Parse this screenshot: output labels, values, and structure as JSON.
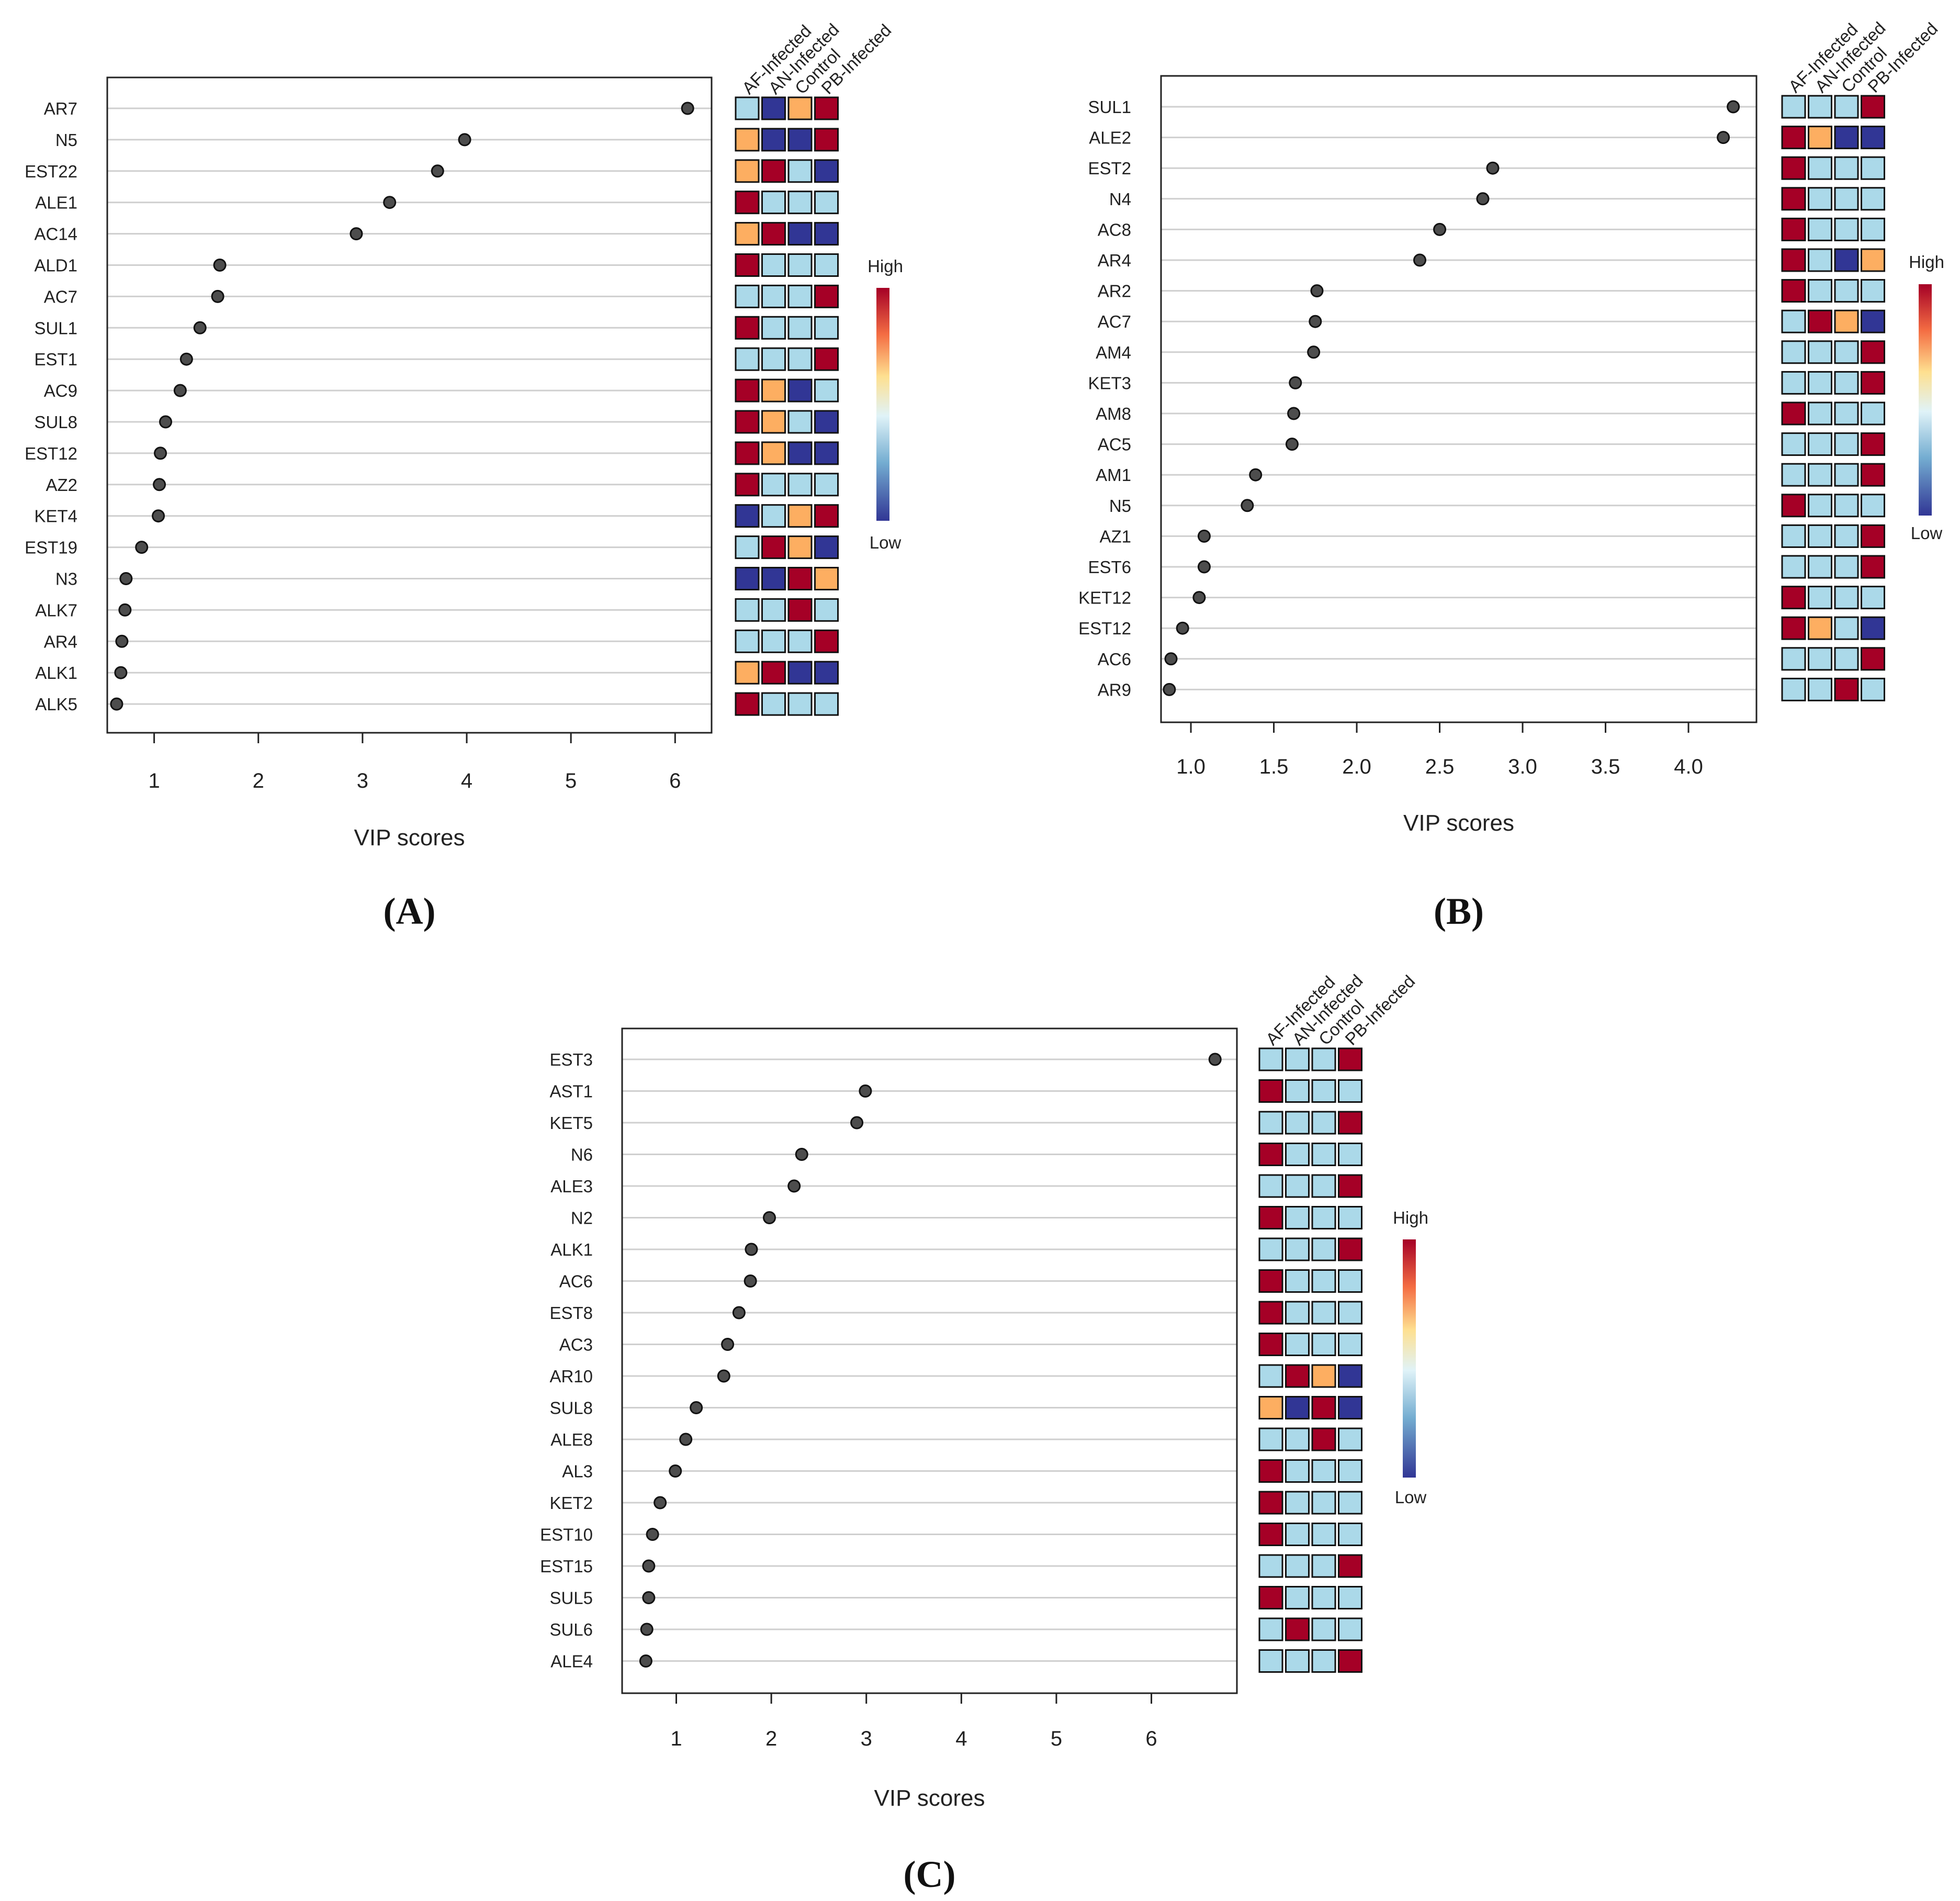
{
  "colors": {
    "high": "#a50026",
    "mid_high": "#fdae61",
    "mid_low": "#abd9e9",
    "low": "#313695",
    "dot": "#4d4d4d",
    "grid": "#cfcfcf"
  },
  "chart_data": [
    {
      "type": "scatter",
      "panel_label": "(A)",
      "xlabel": "VIP scores",
      "xlim": [
        0.55,
        6.35
      ],
      "xticks": [
        1,
        2,
        3,
        4,
        5,
        6
      ],
      "groups": [
        "AF-Infected",
        "AN-Infected",
        "Control",
        "PB-Infected"
      ],
      "legend": {
        "high": "High",
        "low": "Low"
      },
      "items": [
        {
          "label": "AR7",
          "vip": 6.12,
          "levels": [
            "mid_low",
            "low",
            "mid_high",
            "high"
          ]
        },
        {
          "label": "N5",
          "vip": 3.98,
          "levels": [
            "mid_high",
            "low",
            "low",
            "high"
          ]
        },
        {
          "label": "EST22",
          "vip": 3.72,
          "levels": [
            "mid_high",
            "high",
            "mid_low",
            "low"
          ]
        },
        {
          "label": "ALE1",
          "vip": 3.26,
          "levels": [
            "high",
            "mid_low",
            "mid_low",
            "mid_low"
          ]
        },
        {
          "label": "AC14",
          "vip": 2.94,
          "levels": [
            "mid_high",
            "high",
            "low",
            "low"
          ]
        },
        {
          "label": "ALD1",
          "vip": 1.63,
          "levels": [
            "high",
            "mid_low",
            "mid_low",
            "mid_low"
          ]
        },
        {
          "label": "AC7",
          "vip": 1.61,
          "levels": [
            "mid_low",
            "mid_low",
            "mid_low",
            "high"
          ]
        },
        {
          "label": "SUL1",
          "vip": 1.44,
          "levels": [
            "high",
            "mid_low",
            "mid_low",
            "mid_low"
          ]
        },
        {
          "label": "EST1",
          "vip": 1.31,
          "levels": [
            "mid_low",
            "mid_low",
            "mid_low",
            "high"
          ]
        },
        {
          "label": "AC9",
          "vip": 1.25,
          "levels": [
            "high",
            "mid_high",
            "low",
            "mid_low"
          ]
        },
        {
          "label": "SUL8",
          "vip": 1.11,
          "levels": [
            "high",
            "mid_high",
            "mid_low",
            "low"
          ]
        },
        {
          "label": "EST12",
          "vip": 1.06,
          "levels": [
            "high",
            "mid_high",
            "low",
            "low"
          ]
        },
        {
          "label": "AZ2",
          "vip": 1.05,
          "levels": [
            "high",
            "mid_low",
            "mid_low",
            "mid_low"
          ]
        },
        {
          "label": "KET4",
          "vip": 1.04,
          "levels": [
            "low",
            "mid_low",
            "mid_high",
            "high"
          ]
        },
        {
          "label": "EST19",
          "vip": 0.88,
          "levels": [
            "mid_low",
            "high",
            "mid_high",
            "low"
          ]
        },
        {
          "label": "N3",
          "vip": 0.73,
          "levels": [
            "low",
            "low",
            "high",
            "mid_high"
          ]
        },
        {
          "label": "ALK7",
          "vip": 0.72,
          "levels": [
            "mid_low",
            "mid_low",
            "high",
            "mid_low"
          ]
        },
        {
          "label": "AR4",
          "vip": 0.69,
          "levels": [
            "mid_low",
            "mid_low",
            "mid_low",
            "high"
          ]
        },
        {
          "label": "ALK1",
          "vip": 0.68,
          "levels": [
            "mid_high",
            "high",
            "low",
            "low"
          ]
        },
        {
          "label": "ALK5",
          "vip": 0.64,
          "levels": [
            "high",
            "mid_low",
            "mid_low",
            "mid_low"
          ]
        }
      ]
    },
    {
      "type": "scatter",
      "panel_label": "(B)",
      "xlabel": "VIP scores",
      "xlim": [
        0.82,
        4.41
      ],
      "xticks": [
        1.0,
        1.5,
        2.0,
        2.5,
        3.0,
        3.5,
        4.0
      ],
      "xtick_labels": [
        "1.0",
        "1.5",
        "2.0",
        "2.5",
        "3.0",
        "3.5",
        "4.0"
      ],
      "groups": [
        "AF-Infected",
        "AN-Infected",
        "Control",
        "PB-Infected"
      ],
      "legend": {
        "high": "High",
        "low": "Low"
      },
      "items": [
        {
          "label": "SUL1",
          "vip": 4.27,
          "levels": [
            "mid_low",
            "mid_low",
            "mid_low",
            "high"
          ]
        },
        {
          "label": "ALE2",
          "vip": 4.21,
          "levels": [
            "high",
            "mid_high",
            "low",
            "low"
          ]
        },
        {
          "label": "EST2",
          "vip": 2.82,
          "levels": [
            "high",
            "mid_low",
            "mid_low",
            "mid_low"
          ]
        },
        {
          "label": "N4",
          "vip": 2.76,
          "levels": [
            "high",
            "mid_low",
            "mid_low",
            "mid_low"
          ]
        },
        {
          "label": "AC8",
          "vip": 2.5,
          "levels": [
            "high",
            "mid_low",
            "mid_low",
            "mid_low"
          ]
        },
        {
          "label": "AR4",
          "vip": 2.38,
          "levels": [
            "high",
            "mid_low",
            "low",
            "mid_high"
          ]
        },
        {
          "label": "AR2",
          "vip": 1.76,
          "levels": [
            "high",
            "mid_low",
            "mid_low",
            "mid_low"
          ]
        },
        {
          "label": "AC7",
          "vip": 1.75,
          "levels": [
            "mid_low",
            "high",
            "mid_high",
            "low"
          ]
        },
        {
          "label": "AM4",
          "vip": 1.74,
          "levels": [
            "mid_low",
            "mid_low",
            "mid_low",
            "high"
          ]
        },
        {
          "label": "KET3",
          "vip": 1.63,
          "levels": [
            "mid_low",
            "mid_low",
            "mid_low",
            "high"
          ]
        },
        {
          "label": "AM8",
          "vip": 1.62,
          "levels": [
            "high",
            "mid_low",
            "mid_low",
            "mid_low"
          ]
        },
        {
          "label": "AC5",
          "vip": 1.61,
          "levels": [
            "mid_low",
            "mid_low",
            "mid_low",
            "high"
          ]
        },
        {
          "label": "AM1",
          "vip": 1.39,
          "levels": [
            "mid_low",
            "mid_low",
            "mid_low",
            "high"
          ]
        },
        {
          "label": "N5",
          "vip": 1.34,
          "levels": [
            "high",
            "mid_low",
            "mid_low",
            "mid_low"
          ]
        },
        {
          "label": "AZ1",
          "vip": 1.08,
          "levels": [
            "mid_low",
            "mid_low",
            "mid_low",
            "high"
          ]
        },
        {
          "label": "EST6",
          "vip": 1.08,
          "levels": [
            "mid_low",
            "mid_low",
            "mid_low",
            "high"
          ]
        },
        {
          "label": "KET12",
          "vip": 1.05,
          "levels": [
            "high",
            "mid_low",
            "mid_low",
            "mid_low"
          ]
        },
        {
          "label": "EST12",
          "vip": 0.95,
          "levels": [
            "high",
            "mid_high",
            "mid_low",
            "low"
          ]
        },
        {
          "label": "AC6",
          "vip": 0.88,
          "levels": [
            "mid_low",
            "mid_low",
            "mid_low",
            "high"
          ]
        },
        {
          "label": "AR9",
          "vip": 0.87,
          "levels": [
            "mid_low",
            "mid_low",
            "high",
            "mid_low"
          ]
        }
      ]
    },
    {
      "type": "scatter",
      "panel_label": "(C)",
      "xlabel": "VIP scores",
      "xlim": [
        0.43,
        6.9
      ],
      "xticks": [
        1,
        2,
        3,
        4,
        5,
        6
      ],
      "groups": [
        "AF-Infected",
        "AN-Infected",
        "Control",
        "PB-Infected"
      ],
      "legend": {
        "high": "High",
        "low": "Low"
      },
      "items": [
        {
          "label": "EST3",
          "vip": 6.67,
          "levels": [
            "mid_low",
            "mid_low",
            "mid_low",
            "high"
          ]
        },
        {
          "label": "AST1",
          "vip": 2.99,
          "levels": [
            "high",
            "mid_low",
            "mid_low",
            "mid_low"
          ]
        },
        {
          "label": "KET5",
          "vip": 2.9,
          "levels": [
            "mid_low",
            "mid_low",
            "mid_low",
            "high"
          ]
        },
        {
          "label": "N6",
          "vip": 2.32,
          "levels": [
            "high",
            "mid_low",
            "mid_low",
            "mid_low"
          ]
        },
        {
          "label": "ALE3",
          "vip": 2.24,
          "levels": [
            "mid_low",
            "mid_low",
            "mid_low",
            "high"
          ]
        },
        {
          "label": "N2",
          "vip": 1.98,
          "levels": [
            "high",
            "mid_low",
            "mid_low",
            "mid_low"
          ]
        },
        {
          "label": "ALK1",
          "vip": 1.79,
          "levels": [
            "mid_low",
            "mid_low",
            "mid_low",
            "high"
          ]
        },
        {
          "label": "AC6",
          "vip": 1.78,
          "levels": [
            "high",
            "mid_low",
            "mid_low",
            "mid_low"
          ]
        },
        {
          "label": "EST8",
          "vip": 1.66,
          "levels": [
            "high",
            "mid_low",
            "mid_low",
            "mid_low"
          ]
        },
        {
          "label": "AC3",
          "vip": 1.54,
          "levels": [
            "high",
            "mid_low",
            "mid_low",
            "mid_low"
          ]
        },
        {
          "label": "AR10",
          "vip": 1.5,
          "levels": [
            "mid_low",
            "high",
            "mid_high",
            "low"
          ]
        },
        {
          "label": "SUL8",
          "vip": 1.21,
          "levels": [
            "mid_high",
            "low",
            "high",
            "low"
          ]
        },
        {
          "label": "ALE8",
          "vip": 1.1,
          "levels": [
            "mid_low",
            "mid_low",
            "high",
            "mid_low"
          ]
        },
        {
          "label": "AL3",
          "vip": 0.99,
          "levels": [
            "high",
            "mid_low",
            "mid_low",
            "mid_low"
          ]
        },
        {
          "label": "KET2",
          "vip": 0.83,
          "levels": [
            "high",
            "mid_low",
            "mid_low",
            "mid_low"
          ]
        },
        {
          "label": "EST10",
          "vip": 0.75,
          "levels": [
            "high",
            "mid_low",
            "mid_low",
            "mid_low"
          ]
        },
        {
          "label": "EST15",
          "vip": 0.71,
          "levels": [
            "mid_low",
            "mid_low",
            "mid_low",
            "high"
          ]
        },
        {
          "label": "SUL5",
          "vip": 0.71,
          "levels": [
            "high",
            "mid_low",
            "mid_low",
            "mid_low"
          ]
        },
        {
          "label": "SUL6",
          "vip": 0.69,
          "levels": [
            "mid_low",
            "high",
            "mid_low",
            "mid_low"
          ]
        },
        {
          "label": "ALE4",
          "vip": 0.68,
          "levels": [
            "mid_low",
            "mid_low",
            "mid_low",
            "high"
          ]
        }
      ]
    }
  ]
}
